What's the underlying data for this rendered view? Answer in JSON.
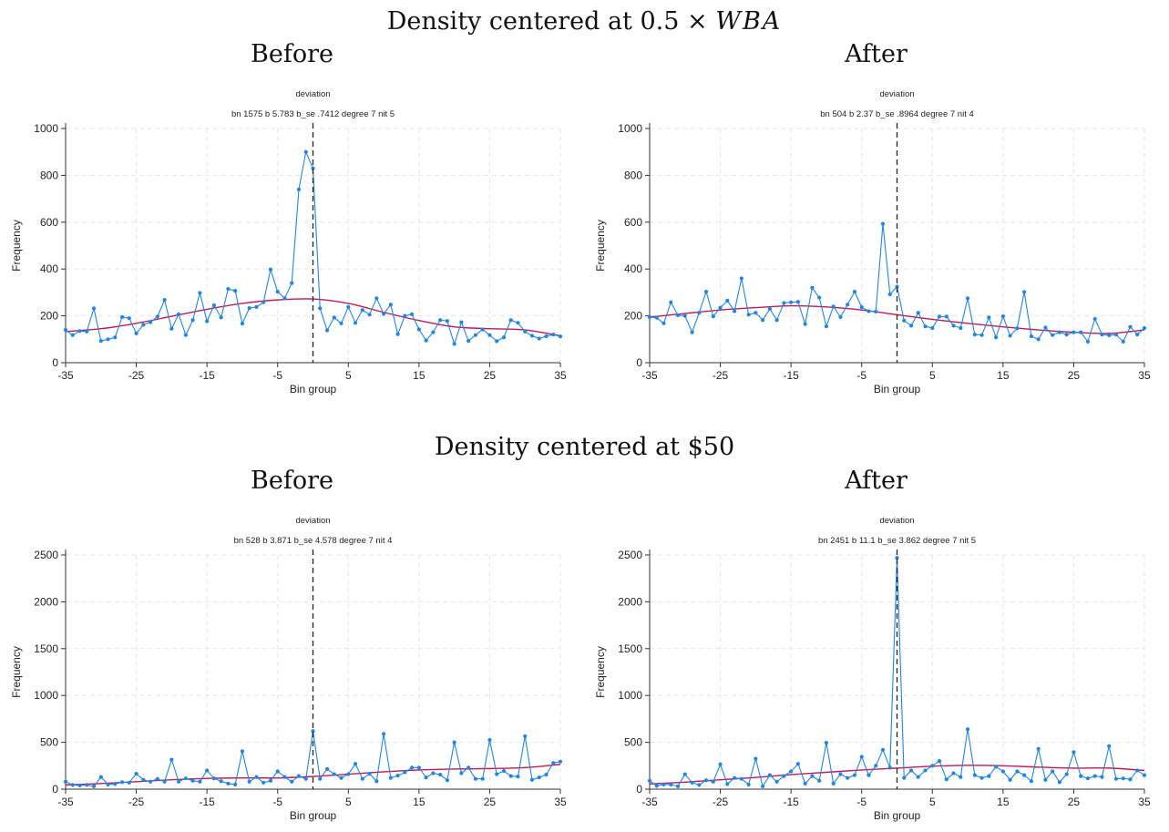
{
  "sections": [
    {
      "title_prefix": "Density centered at 0.5 × ",
      "title_math": "WBA",
      "before_label": "Before",
      "after_label": "After"
    },
    {
      "title_prefix": "Density centered at $50",
      "title_math": "",
      "before_label": "Before",
      "after_label": "After"
    }
  ],
  "colors": {
    "series": "#1f86e8",
    "fit": "#c0185a",
    "cutoff": "#222222",
    "grid": "#e6e6e6"
  },
  "chart_data": [
    {
      "type": "line",
      "title": "deviation",
      "subtitle": "bn 1575 b 5.783 b_se .7412 degree 7 nit 5",
      "xlabel": "Bin group",
      "ylabel": "Frequency",
      "xlim": [
        -35,
        35
      ],
      "ylim": [
        0,
        1000
      ],
      "xticks": [
        "-35",
        "-25",
        "-15",
        "-5",
        "5",
        "15",
        "25",
        "35"
      ],
      "yticks": [
        "0",
        "200",
        "400",
        "600",
        "800",
        "1000"
      ],
      "grid": true,
      "cutoff_x": 0,
      "series": [
        {
          "x": [
            -35,
            -34,
            -33,
            -32,
            -31,
            -30,
            -29,
            -28,
            -27,
            -26,
            -25,
            -24,
            -23,
            -22,
            -21,
            -20,
            -19,
            -18,
            -17,
            -16,
            -15,
            -14,
            -13,
            -12,
            -11,
            -10,
            -9,
            -8,
            -7,
            -6,
            -5,
            -4,
            -3,
            -2,
            -1,
            0,
            1,
            2,
            3,
            4,
            5,
            6,
            7,
            8,
            9,
            10,
            11,
            12,
            13,
            14,
            15,
            16,
            17,
            18,
            19,
            20,
            21,
            22,
            23,
            24,
            25,
            26,
            27,
            28,
            29,
            30,
            31,
            32,
            33,
            34,
            35
          ],
          "y": [
            140,
            118,
            135,
            133,
            232,
            93,
            100,
            108,
            195,
            190,
            125,
            162,
            173,
            197,
            268,
            145,
            207,
            118,
            182,
            298,
            177,
            245,
            193,
            315,
            307,
            167,
            233,
            238,
            258,
            398,
            303,
            275,
            340,
            740,
            900,
            830,
            232,
            138,
            193,
            168,
            238,
            170,
            225,
            205,
            275,
            208,
            248,
            122,
            200,
            207,
            142,
            95,
            130,
            182,
            178,
            80,
            173,
            93,
            118,
            142,
            118,
            92,
            108,
            182,
            170,
            133,
            115,
            103,
            113,
            120,
            112
          ]
        }
      ],
      "fit": {
        "x": [
          -35,
          -30,
          -25,
          -20,
          -15,
          -10,
          -5,
          0,
          5,
          10,
          15,
          20,
          25,
          30,
          35
        ],
        "y": [
          133,
          145,
          168,
          198,
          228,
          253,
          268,
          272,
          253,
          215,
          180,
          153,
          145,
          140,
          115
        ]
      }
    },
    {
      "type": "line",
      "title": "deviation",
      "subtitle": "bn 504 b 2.37 b_se .8964 degree 7 nit 4",
      "xlabel": "Bin group",
      "ylabel": "Frequency",
      "xlim": [
        -35,
        35
      ],
      "ylim": [
        0,
        1000
      ],
      "xticks": [
        "-35",
        "-25",
        "-15",
        "-5",
        "5",
        "15",
        "25",
        "35"
      ],
      "yticks": [
        "0",
        "200",
        "400",
        "600",
        "800",
        "1000"
      ],
      "grid": true,
      "cutoff_x": 0,
      "series": [
        {
          "x": [
            -35,
            -34,
            -33,
            -32,
            -31,
            -30,
            -29,
            -28,
            -27,
            -26,
            -25,
            -24,
            -23,
            -22,
            -21,
            -20,
            -19,
            -18,
            -17,
            -16,
            -15,
            -14,
            -13,
            -12,
            -11,
            -10,
            -9,
            -8,
            -7,
            -6,
            -5,
            -4,
            -3,
            -2,
            -1,
            0,
            1,
            2,
            3,
            4,
            5,
            6,
            7,
            8,
            9,
            10,
            11,
            12,
            13,
            14,
            15,
            16,
            17,
            18,
            19,
            20,
            21,
            22,
            23,
            24,
            25,
            26,
            27,
            28,
            29,
            30,
            31,
            32,
            33,
            34,
            35
          ],
          "y": [
            195,
            192,
            168,
            258,
            203,
            200,
            130,
            213,
            303,
            198,
            235,
            265,
            220,
            360,
            205,
            213,
            182,
            230,
            182,
            255,
            258,
            260,
            165,
            320,
            278,
            155,
            240,
            195,
            248,
            303,
            237,
            220,
            218,
            593,
            292,
            325,
            180,
            158,
            213,
            155,
            148,
            197,
            197,
            158,
            148,
            275,
            120,
            118,
            193,
            108,
            198,
            115,
            147,
            302,
            113,
            100,
            150,
            118,
            130,
            120,
            130,
            130,
            90,
            187,
            120,
            117,
            120,
            90,
            153,
            120,
            148
          ]
        }
      ],
      "fit": {
        "x": [
          -35,
          -30,
          -25,
          -20,
          -15,
          -10,
          -5,
          0,
          5,
          10,
          15,
          20,
          25,
          30,
          35
        ],
        "y": [
          195,
          210,
          225,
          235,
          243,
          238,
          225,
          205,
          185,
          168,
          153,
          140,
          130,
          125,
          140
        ]
      }
    },
    {
      "type": "line",
      "title": "deviation",
      "subtitle": "bn 528 b 3.871 b_se 4.578 degree 7 nit 4",
      "xlabel": "Bin group",
      "ylabel": "Frequency",
      "xlim": [
        -35,
        35
      ],
      "ylim": [
        0,
        2500
      ],
      "xticks": [
        "-35",
        "-25",
        "-15",
        "-5",
        "5",
        "15",
        "25",
        "35"
      ],
      "yticks": [
        "0",
        "500",
        "1000",
        "1500",
        "2000",
        "2500"
      ],
      "grid": true,
      "cutoff_x": 0,
      "series": [
        {
          "x": [
            -35,
            -34,
            -33,
            -32,
            -31,
            -30,
            -29,
            -28,
            -27,
            -26,
            -25,
            -24,
            -23,
            -22,
            -21,
            -20,
            -19,
            -18,
            -17,
            -16,
            -15,
            -14,
            -13,
            -12,
            -11,
            -10,
            -9,
            -8,
            -7,
            -6,
            -5,
            -4,
            -3,
            -2,
            -1,
            0,
            1,
            2,
            3,
            4,
            5,
            6,
            7,
            8,
            9,
            10,
            11,
            12,
            13,
            14,
            15,
            16,
            17,
            18,
            19,
            20,
            21,
            22,
            23,
            24,
            25,
            26,
            27,
            28,
            29,
            30,
            31,
            32,
            33,
            34,
            35
          ],
          "y": [
            80,
            45,
            40,
            45,
            30,
            130,
            50,
            55,
            75,
            70,
            165,
            100,
            80,
            110,
            80,
            315,
            80,
            115,
            90,
            80,
            200,
            115,
            85,
            60,
            50,
            405,
            80,
            130,
            70,
            90,
            190,
            130,
            80,
            140,
            110,
            620,
            110,
            215,
            160,
            120,
            160,
            270,
            110,
            165,
            85,
            590,
            120,
            145,
            180,
            230,
            230,
            125,
            170,
            155,
            95,
            500,
            170,
            230,
            110,
            110,
            525,
            160,
            195,
            140,
            135,
            565,
            100,
            125,
            155,
            280,
            295
          ]
        }
      ],
      "fit": {
        "x": [
          -35,
          -30,
          -25,
          -20,
          -15,
          -10,
          -5,
          0,
          5,
          10,
          15,
          20,
          25,
          30,
          35
        ],
        "y": [
          45,
          60,
          80,
          100,
          115,
          120,
          120,
          135,
          160,
          185,
          205,
          215,
          220,
          230,
          265
        ]
      }
    },
    {
      "type": "line",
      "title": "deviation",
      "subtitle": "bn 2451 b 11.1 b_se 3.862 degree 7 nit 5",
      "xlabel": "Bin group",
      "ylabel": "Frequency",
      "xlim": [
        -35,
        35
      ],
      "ylim": [
        0,
        2500
      ],
      "xticks": [
        "-35",
        "-25",
        "-15",
        "-5",
        "5",
        "15",
        "25",
        "35"
      ],
      "yticks": [
        "0",
        "500",
        "1000",
        "1500",
        "2000",
        "2500"
      ],
      "grid": true,
      "cutoff_x": 0,
      "series": [
        {
          "x": [
            -35,
            -34,
            -33,
            -32,
            -31,
            -30,
            -29,
            -28,
            -27,
            -26,
            -25,
            -24,
            -23,
            -22,
            -21,
            -20,
            -19,
            -18,
            -17,
            -16,
            -15,
            -14,
            -13,
            -12,
            -11,
            -10,
            -9,
            -8,
            -7,
            -6,
            -5,
            -4,
            -3,
            -2,
            -1,
            0,
            1,
            2,
            3,
            4,
            5,
            6,
            7,
            8,
            9,
            10,
            11,
            12,
            13,
            14,
            15,
            16,
            17,
            18,
            19,
            20,
            21,
            22,
            23,
            24,
            25,
            26,
            27,
            28,
            29,
            30,
            31,
            32,
            33,
            34,
            35
          ],
          "y": [
            90,
            35,
            50,
            50,
            30,
            160,
            70,
            45,
            95,
            80,
            265,
            55,
            120,
            110,
            50,
            325,
            30,
            150,
            80,
            140,
            190,
            270,
            60,
            140,
            90,
            495,
            60,
            160,
            120,
            150,
            345,
            150,
            250,
            420,
            230,
            2470,
            120,
            200,
            130,
            200,
            250,
            300,
            105,
            170,
            130,
            640,
            150,
            120,
            140,
            240,
            190,
            100,
            190,
            150,
            85,
            430,
            100,
            190,
            75,
            160,
            395,
            140,
            115,
            140,
            130,
            460,
            110,
            115,
            105,
            200,
            150
          ]
        }
      ],
      "fit": {
        "x": [
          -35,
          -30,
          -25,
          -20,
          -15,
          -10,
          -5,
          0,
          5,
          10,
          15,
          20,
          25,
          30,
          35
        ],
        "y": [
          55,
          75,
          100,
          125,
          155,
          180,
          205,
          225,
          245,
          255,
          250,
          235,
          225,
          225,
          200
        ]
      }
    }
  ]
}
